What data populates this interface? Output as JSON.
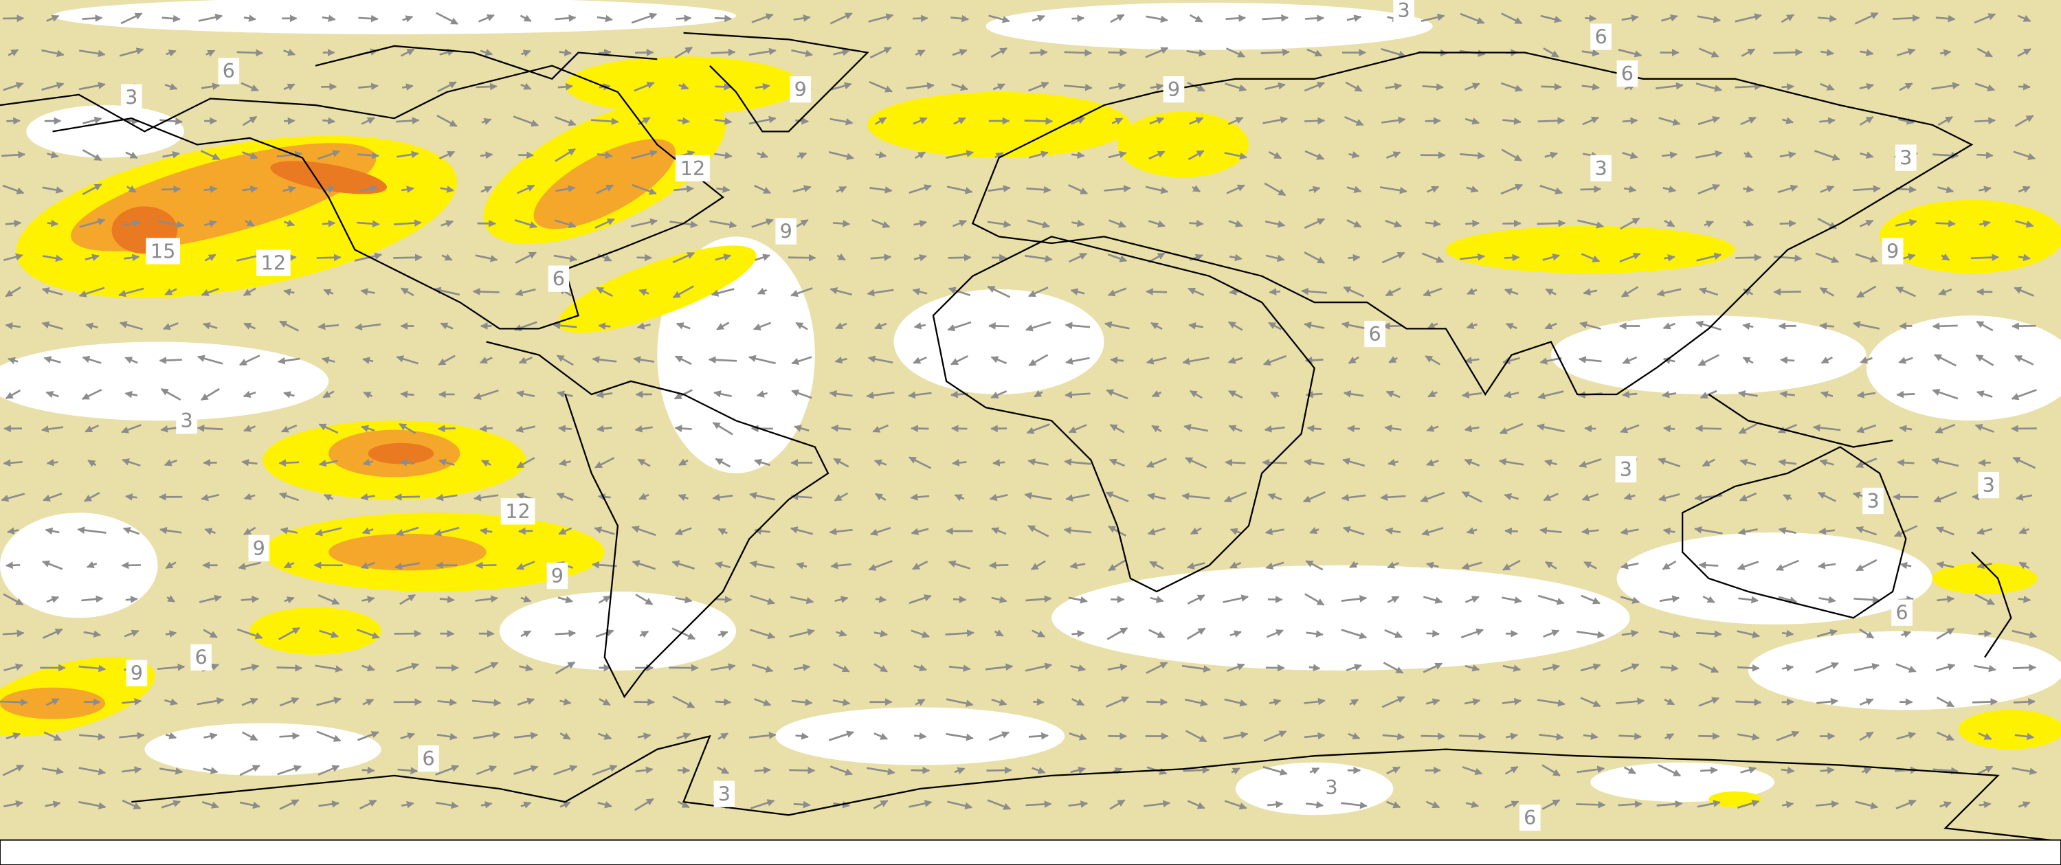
{
  "contour_labels": [
    3,
    6,
    6,
    3,
    9,
    6,
    9,
    12,
    3,
    3,
    15,
    12,
    9,
    9,
    6,
    6,
    3,
    3,
    3,
    3,
    12,
    9,
    9,
    6,
    6,
    9,
    6,
    3,
    3,
    6
  ]
}
